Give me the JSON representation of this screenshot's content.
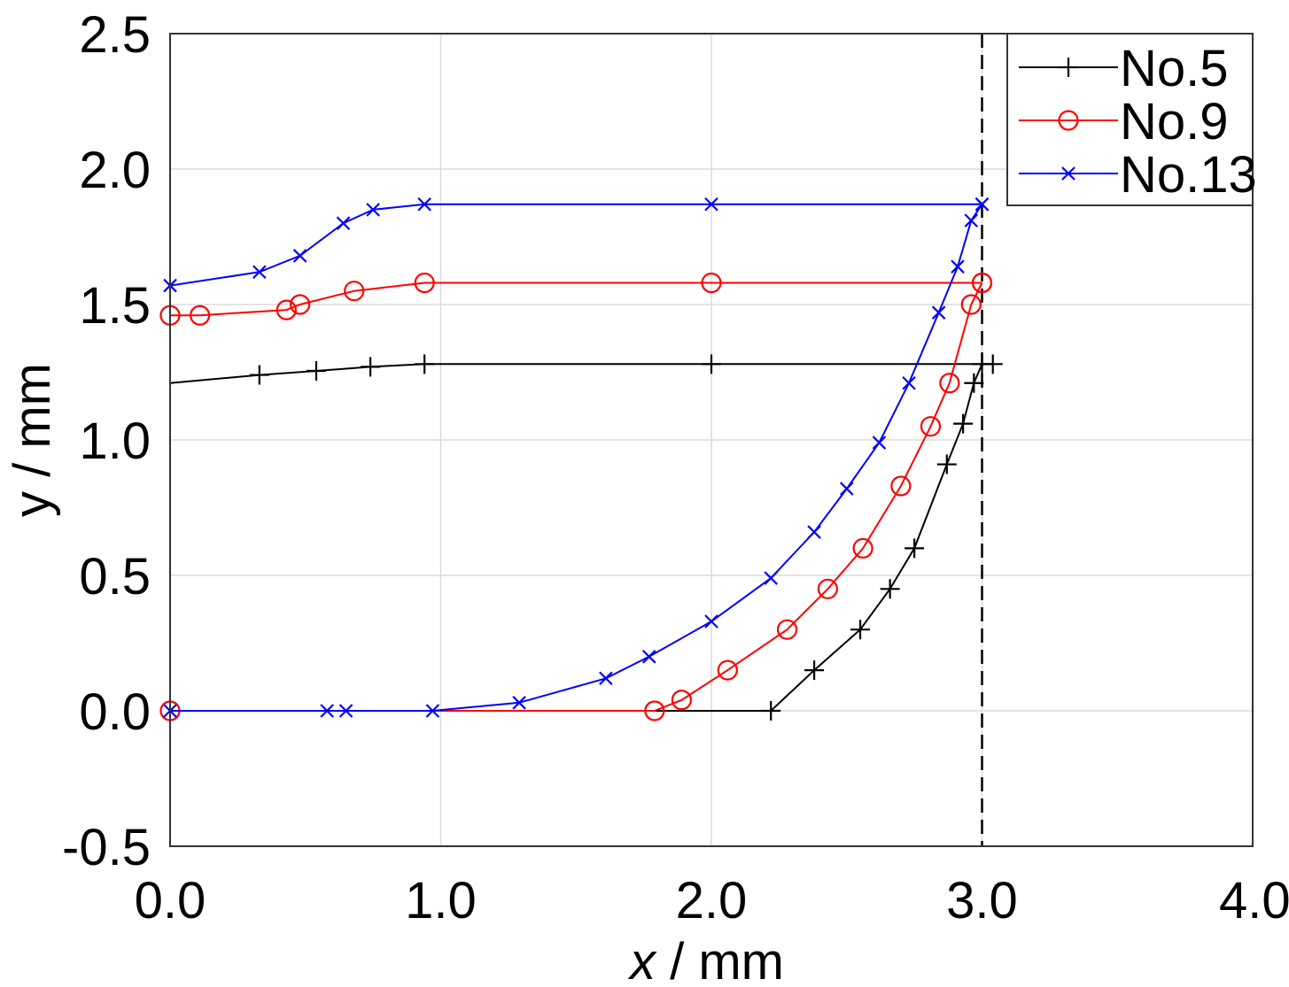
{
  "chart_data": {
    "type": "line",
    "xlabel_var": "x",
    "xlabel_unit": " / mm",
    "ylabel": "y / mm",
    "xlim": [
      0.0,
      4.0
    ],
    "ylim": [
      -0.5,
      2.5
    ],
    "xticks": [
      "0.0",
      "1.0",
      "2.0",
      "3.0",
      "4.0"
    ],
    "yticks": [
      "-0.5",
      "0.0",
      "0.5",
      "1.0",
      "1.5",
      "2.0",
      "2.5"
    ],
    "grid": true,
    "legend_position": "top-right",
    "reference_line": {
      "x": 3.0,
      "style": "dashed",
      "color": "#000000"
    },
    "series": [
      {
        "name": "No.5",
        "color": "#000000",
        "marker": "plus",
        "segments": [
          [
            [
              0.0,
              1.21
            ],
            [
              0.33,
              1.24
            ],
            [
              0.54,
              1.255
            ],
            [
              0.74,
              1.27
            ],
            [
              0.94,
              1.28
            ],
            [
              2.0,
              1.28
            ],
            [
              3.04,
              1.28
            ]
          ],
          [
            [
              0.0,
              0.0
            ],
            [
              2.22,
              0.0
            ],
            [
              2.38,
              0.15
            ],
            [
              2.55,
              0.3
            ],
            [
              2.66,
              0.45
            ],
            [
              2.75,
              0.6
            ],
            [
              2.87,
              0.91
            ],
            [
              2.93,
              1.06
            ],
            [
              2.97,
              1.21
            ],
            [
              3.0,
              1.28
            ]
          ]
        ]
      },
      {
        "name": "No.9",
        "color": "#ff0000",
        "marker": "circle",
        "segments": [
          [
            [
              0.0,
              1.46
            ],
            [
              0.11,
              1.46
            ],
            [
              0.43,
              1.48
            ],
            [
              0.48,
              1.5
            ],
            [
              0.68,
              1.55
            ],
            [
              0.94,
              1.58
            ],
            [
              2.0,
              1.58
            ],
            [
              3.0,
              1.58
            ]
          ],
          [
            [
              0.0,
              0.0
            ],
            [
              1.79,
              0.0
            ],
            [
              1.89,
              0.04
            ],
            [
              2.06,
              0.15
            ],
            [
              2.28,
              0.3
            ],
            [
              2.43,
              0.45
            ],
            [
              2.56,
              0.6
            ],
            [
              2.7,
              0.83
            ],
            [
              2.81,
              1.05
            ],
            [
              2.88,
              1.21
            ],
            [
              2.96,
              1.5
            ],
            [
              3.0,
              1.58
            ]
          ]
        ]
      },
      {
        "name": "No.13",
        "color": "#0000ff",
        "marker": "x",
        "segments": [
          [
            [
              0.0,
              1.57
            ],
            [
              0.33,
              1.62
            ],
            [
              0.48,
              1.68
            ],
            [
              0.64,
              1.8
            ],
            [
              0.75,
              1.85
            ],
            [
              0.94,
              1.87
            ],
            [
              2.0,
              1.87
            ],
            [
              3.0,
              1.87
            ]
          ],
          [
            [
              0.0,
              0.0
            ],
            [
              0.58,
              0.0
            ],
            [
              0.65,
              0.0
            ],
            [
              0.97,
              0.0
            ],
            [
              1.29,
              0.03
            ],
            [
              1.61,
              0.12
            ],
            [
              1.77,
              0.2
            ],
            [
              2.0,
              0.33
            ],
            [
              2.22,
              0.49
            ],
            [
              2.38,
              0.66
            ],
            [
              2.5,
              0.82
            ],
            [
              2.62,
              0.99
            ],
            [
              2.73,
              1.21
            ],
            [
              2.84,
              1.47
            ],
            [
              2.91,
              1.64
            ],
            [
              2.96,
              1.81
            ],
            [
              3.0,
              1.87
            ]
          ]
        ]
      }
    ]
  }
}
